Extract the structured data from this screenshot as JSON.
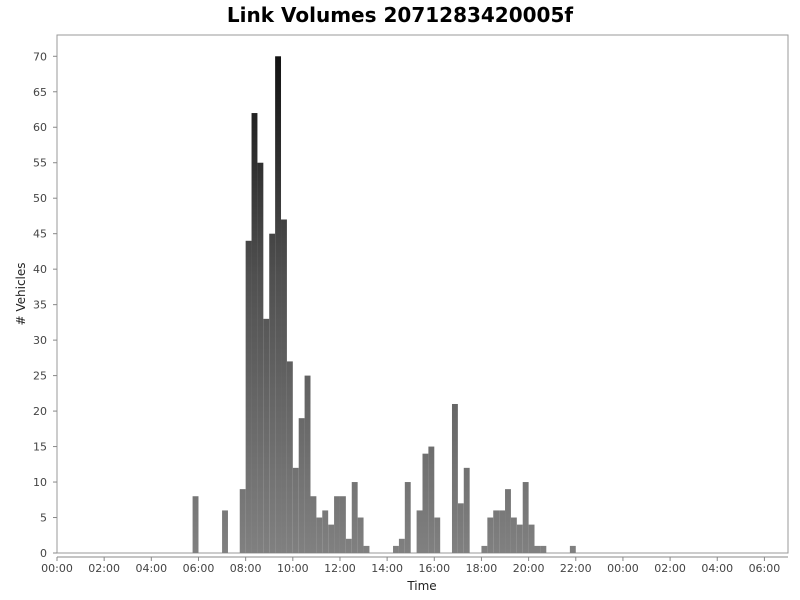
{
  "chart_data": {
    "type": "bar",
    "title": "Link Volumes 2071283420005f",
    "xlabel": "Time",
    "ylabel": "# Vehicles",
    "x_tick_labels": [
      "00:00",
      "02:00",
      "04:00",
      "06:00",
      "08:00",
      "10:00",
      "12:00",
      "14:00",
      "16:00",
      "18:00",
      "20:00",
      "22:00",
      "00:00",
      "02:00",
      "04:00",
      "06:00"
    ],
    "xlim_hours": [
      0,
      31
    ],
    "ylim": [
      0,
      73
    ],
    "y_ticks": [
      0,
      5,
      10,
      15,
      20,
      25,
      30,
      35,
      40,
      45,
      50,
      55,
      60,
      65,
      70
    ],
    "bin_width_hours": 0.25,
    "bin_start_hours": [
      5.75,
      7.0,
      7.75,
      8.0,
      8.25,
      8.5,
      8.75,
      9.0,
      9.25,
      9.5,
      9.75,
      10.0,
      10.25,
      10.5,
      10.75,
      11.0,
      11.25,
      11.5,
      11.75,
      12.0,
      12.25,
      12.5,
      12.75,
      13.0,
      14.25,
      14.5,
      14.75,
      15.25,
      15.5,
      15.75,
      16.0,
      16.75,
      17.0,
      17.25,
      18.0,
      18.25,
      18.5,
      18.75,
      19.0,
      19.25,
      19.5,
      19.75,
      20.0,
      20.25,
      20.5,
      21.75
    ],
    "values": [
      8,
      6,
      9,
      44,
      62,
      55,
      33,
      45,
      70,
      47,
      27,
      12,
      19,
      25,
      8,
      5,
      6,
      4,
      8,
      8,
      2,
      10,
      5,
      1,
      1,
      2,
      10,
      6,
      14,
      15,
      5,
      21,
      7,
      12,
      1,
      5,
      6,
      6,
      9,
      5,
      4,
      10,
      4,
      1,
      1,
      1
    ],
    "grid": false,
    "legend": "none"
  }
}
